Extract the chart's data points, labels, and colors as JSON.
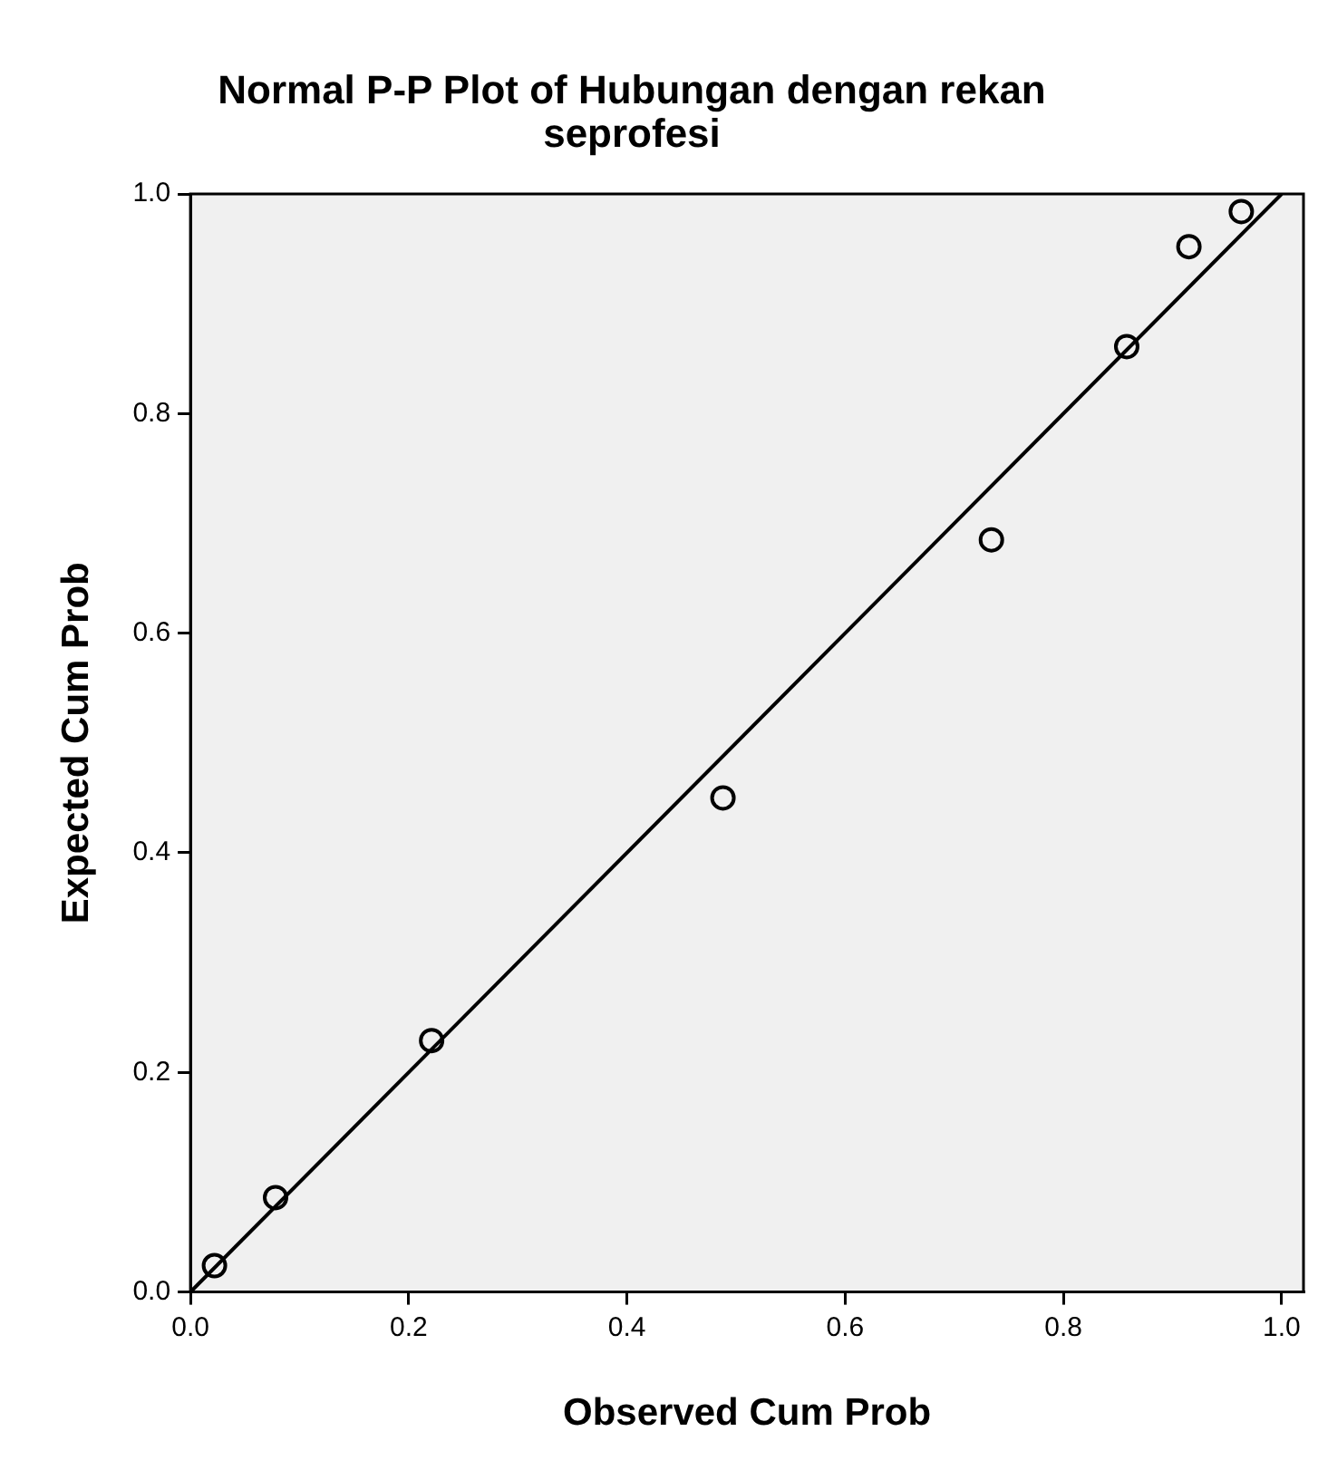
{
  "chart_data": {
    "type": "scatter",
    "title": "Normal P-P Plot of Hubungan dengan rekan seprofesi",
    "xlabel": "Observed Cum Prob",
    "ylabel": "Expected Cum Prob",
    "series": [
      {
        "color": "#000000",
        "marker": "circle",
        "x": [
          0.022,
          0.078,
          0.221,
          0.488,
          0.734,
          0.858,
          0.915,
          0.963
        ],
        "values": [
          0.024,
          0.086,
          0.229,
          0.45,
          0.685,
          0.861,
          0.952,
          0.984
        ]
      },
      {
        "type": "line",
        "color": "#000000",
        "marker": "none",
        "line_style": "solid",
        "x": [
          0,
          1
        ],
        "values": [
          0,
          1
        ]
      }
    ],
    "xlim": [
      0,
      1.02
    ],
    "ylim": [
      0,
      1
    ],
    "xticks": [
      {
        "value": 0,
        "label": "0.0"
      },
      {
        "value": 0.2,
        "label": "0.2"
      },
      {
        "value": 0.4,
        "label": "0.4"
      },
      {
        "value": 0.6,
        "label": "0.6"
      },
      {
        "value": 0.8,
        "label": "0.8"
      },
      {
        "value": 1,
        "label": "1.0"
      }
    ],
    "yticks": [
      {
        "value": 0,
        "label": "0.0"
      },
      {
        "value": 0.2,
        "label": "0.2"
      },
      {
        "value": 0.4,
        "label": "0.4"
      },
      {
        "value": 0.6,
        "label": "0.6"
      },
      {
        "value": 0.8,
        "label": "0.8"
      },
      {
        "value": 1,
        "label": "1.0"
      }
    ],
    "grid": false,
    "legend": false
  }
}
